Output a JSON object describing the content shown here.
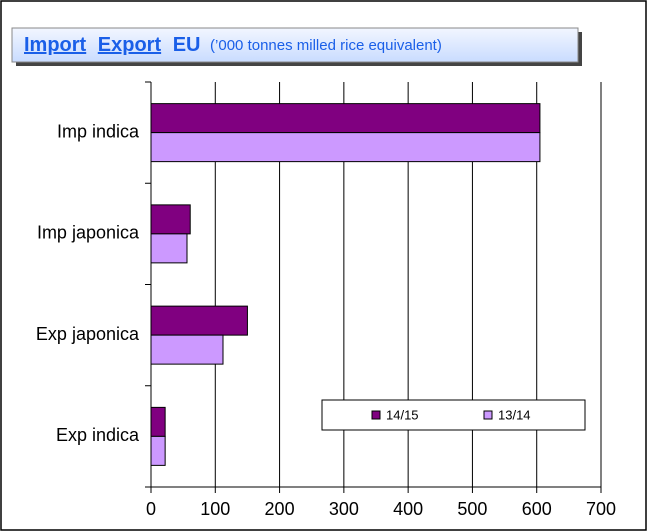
{
  "chart_data": {
    "type": "hbar",
    "title_links": [
      "Import",
      "Export"
    ],
    "title": "EU",
    "subtitle": "(’000 tonnes milled rice equivalent)",
    "categories": [
      "Imp indica",
      "Imp japonica",
      "Exp japonica",
      "Exp indica"
    ],
    "series": [
      {
        "name": "14/15",
        "color": "#800080",
        "values": [
          605,
          61,
          150,
          22
        ]
      },
      {
        "name": "13/14",
        "color": "#cc99ff",
        "values": [
          605,
          56,
          112,
          22
        ]
      }
    ],
    "xlim": [
      0,
      700
    ],
    "xticks": [
      0,
      100,
      200,
      300,
      400,
      500,
      600,
      700
    ],
    "grid": true,
    "legend": "bottom-right"
  }
}
